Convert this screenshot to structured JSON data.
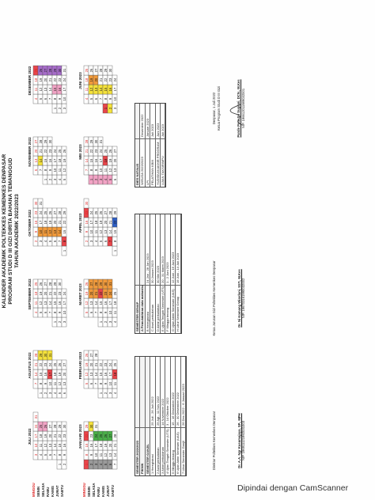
{
  "header": {
    "line1": "KALENDER AKADEMIK POLTEKKES KEMENKES DENPASAR",
    "line2": "PROGRAM STUDI D III GIZI DIRITA BAHANA TEMANGGUD",
    "line3": "TAHUN AKADEMIK 2022/2023"
  },
  "day_labels": [
    "MINGGU",
    "SENIN",
    "SELASA",
    "RABU",
    "KAMIS",
    "JUMAT",
    "SABTU"
  ],
  "months": [
    {
      "name": "JULI 2022"
    },
    {
      "name": "AGUSTUS 2022"
    },
    {
      "name": "SEPTEMBER 2022"
    },
    {
      "name": "OKTOBER 2022"
    },
    {
      "name": "NOVEMBER 2022"
    },
    {
      "name": "DESEMBER 2022"
    },
    {
      "name": "JANUARI 2023"
    },
    {
      "name": "FEBRUARI 2023"
    },
    {
      "name": "MARET 2023"
    },
    {
      "name": "APRIL 2023"
    },
    {
      "name": "MEI 2023"
    },
    {
      "name": "JUNI 2023"
    }
  ],
  "colors": {
    "red": "#e8454a",
    "pink": "#f2a3c5",
    "yellow": "#f5e23a",
    "orange": "#f29a3a",
    "green": "#49b048",
    "blue": "#2f5fc4",
    "purple": "#a66cc9",
    "gray": "#9a9a9a",
    "lightgray": "#d8d8d8",
    "hatch": "#7aa0d8"
  },
  "ganjil": {
    "title": "SEMESTER 2022/2023",
    "sub": "PIKNIK",
    "sem_title": "SEMESTER GANJIL",
    "rows": [
      {
        "label": "1 Heregistrasi",
        "date": "25 Juli - 26 Juli 2022"
      },
      {
        "label": "2 Awal perkuliahan",
        "date": "29 Agt - 11 Nov 2022"
      },
      {
        "label": "3 Akhir perkuliahan",
        "date": "14 November 2022"
      },
      {
        "label": "4 Ujian Tengah Semester (UTS)",
        "date": "3 - 14 Oktober 2022"
      },
      {
        "label": "5 Minggu tenang",
        "date": "15 - 16 Desember 2022"
      },
      {
        "label": "6 Ujian Akhir Semester (UAS)",
        "date": "26 - 30 Desember 2022"
      },
      {
        "label": "7 Libur Semester Ganjil",
        "date": "26 Des 2022 - 6 Januari 2023"
      }
    ]
  },
  "genap": {
    "title": "SEMESTER GENAP",
    "sub": "A Pemutakhiran data mahasiswa",
    "rows": [
      {
        "label": "B Heregistrasi",
        "date": "24 Jan - 28 Jan 2023"
      },
      {
        "label": "C Awal perkuliahan",
        "date": "30 Januari 2023"
      },
      {
        "label": "D Akhir perkuliahan",
        "date": "30 Mei 2023"
      },
      {
        "label": "E Ujian Tengah Semester (UTS)",
        "date": "20 - 31 Maret 2023"
      },
      {
        "label": "F Minggu tenang",
        "date": "1 - 2 Juni 2023"
      },
      {
        "label": "G Ujian Akhir Semester (UAS)",
        "date": "12 Juni - 16 Juni 2023"
      },
      {
        "label": "H Libur Semester Genap",
        "date": "19 Juni - 14 Juli 2023"
      }
    ]
  },
  "extra": {
    "title": "DIES NATALIS",
    "rows": [
      {
        "label": "WISUDA 2022/2023",
        "date": "Desember 2022"
      },
      {
        "label": "LPI",
        "date": "Januari 2023"
      },
      {
        "label": "PELATIHAN KBM",
        "date": "Juli 2023"
      },
      {
        "label": "YUDISIUM AKHIR PROGRAM",
        "date": "Juni 2023"
      },
      {
        "label": "UJIAN TAKSIRIMPU",
        "date": "Juli 2023"
      }
    ]
  },
  "signatures": {
    "left_title": "Direktur Poltekkes Kemenkes Denpasar",
    "left_name": "Dr. A.A. Ngr Kusumajaya, SP., MPH",
    "left_nip": "NIP. 196911121992031003",
    "mid_title": "Ketua Jurusan Gizi Poltekkes Kemenkes Denpasar",
    "mid_name": "Dr. Ni Komang Wiardani, SST., M.Kes",
    "mid_nip": "NIP. 196703161990032002",
    "right_place": "Denpasar, 1 Juli 2022",
    "right_title": "Ketua Program Studi D III Gizi",
    "right_name": "Pande Putu Sri Sugiani, DCN., M.Kes",
    "right_nip": "NIP. 196612011989032001"
  },
  "watermark": "Dipindai dengan CamScanner"
}
